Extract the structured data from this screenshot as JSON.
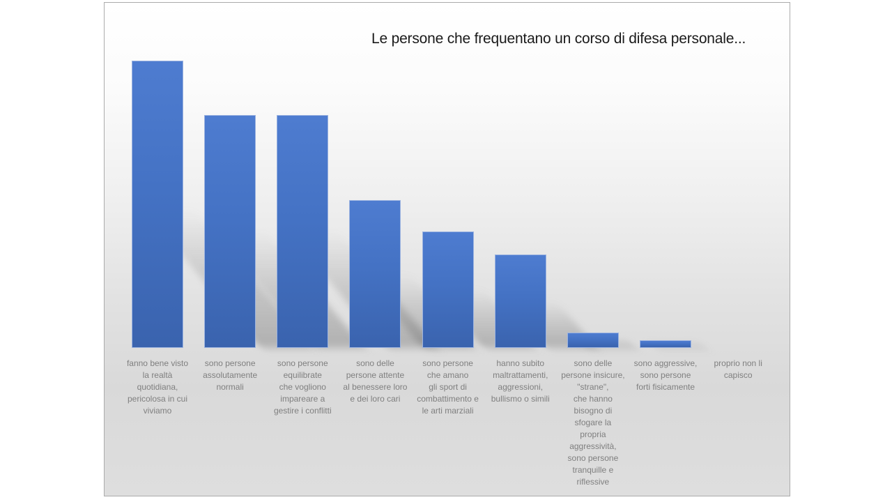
{
  "chart_data": {
    "type": "bar",
    "title": "Le persone che frequentano un corso di difesa personale...",
    "categories": [
      "fanno bene visto\nla realtà\nquotidiana,\npericolosa in cui\nviviamo",
      "sono persone\nassolutamente\nnormali",
      "sono persone\nequilibrate\nche vogliono\nimpareare a\ngestire i conflitti",
      "sono delle\npersone attente\nal benessere loro\ne dei loro cari",
      "sono persone\nche amano\ngli sport di\ncombattimento e\nle arti marziali",
      "hanno subito\nmaltrattamenti,\naggressioni,\nbullismo o simili",
      "sono delle\npersone insicure,\n\"strane\",\nche hanno\nbisogno di\nsfogare la\npropria\naggressività,\nsono persone\ntranquille e\nriflessive",
      "sono aggressive,\nsono persone\nforti fisicamente",
      "proprio non li\ncapisco"
    ],
    "values": [
      37,
      30,
      30,
      19,
      15,
      12,
      2,
      1,
      0
    ],
    "xlabel": "",
    "ylabel": "",
    "ylim": [
      0,
      40
    ],
    "grid": false,
    "legend": false,
    "axes_visible": false,
    "bar_color": "#4472C4"
  },
  "colors": {
    "bar_gradient_top": "#4e7cd0",
    "bar_gradient_bottom": "#3a63ae",
    "bar_edge": "#9db4e0",
    "category_label": "#7f7f7f",
    "title_text": "#1a1a1a",
    "slide_border": "#ababab",
    "background_top": "#ffffff",
    "background_bottom": "#d9d9d9"
  }
}
